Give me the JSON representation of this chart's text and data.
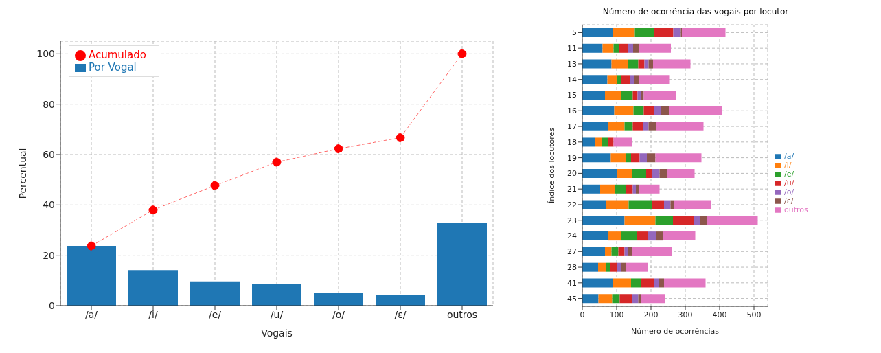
{
  "chart_data": [
    {
      "type": "bar",
      "xlabel": "Vogais",
      "ylabel": "Percentual",
      "categories": [
        "/a/",
        "/i/",
        "/e/",
        "/u/",
        "/o/",
        "/ɛ/",
        "outros"
      ],
      "series": [
        {
          "name": "Acumulado",
          "type": "line",
          "color": "#ff0000",
          "values": [
            23.7,
            38,
            47.7,
            57,
            62.3,
            66.7,
            100
          ]
        },
        {
          "name": "Por Vogal",
          "type": "bar",
          "color": "#1f77b4",
          "values": [
            23.7,
            14.1,
            9.6,
            8.7,
            5.2,
            4.3,
            33
          ]
        }
      ],
      "ylim": [
        0,
        105
      ],
      "yticks": [
        0,
        20,
        40,
        60,
        80,
        100
      ],
      "grid": true,
      "legend": "top left",
      "marker": "circle",
      "line_style": "dashed"
    },
    {
      "type": "bar",
      "orientation": "horizontal",
      "stacked": true,
      "title": "Número de ocorrência das vogais por locutor",
      "xlabel": "Número de ocorrências",
      "ylabel": "Índice dos locutores",
      "categories": [
        "5",
        "11",
        "13",
        "14",
        "15",
        "16",
        "17",
        "18",
        "19",
        "20",
        "21",
        "22",
        "23",
        "24",
        "27",
        "28",
        "41",
        "45"
      ],
      "series": [
        {
          "name": "/a/",
          "color": "#1f77b4",
          "values": [
            90,
            59,
            85,
            73,
            66,
            93,
            75,
            36,
            83,
            102,
            52,
            70,
            123,
            75,
            66,
            46,
            90,
            47
          ]
        },
        {
          "name": "/i/",
          "color": "#ff7f0e",
          "values": [
            63,
            32,
            48,
            27,
            48,
            56,
            48,
            20,
            43,
            44,
            43,
            65,
            90,
            37,
            19,
            24,
            52,
            40
          ]
        },
        {
          "name": "/e/",
          "color": "#2ca02c",
          "values": [
            55,
            16,
            30,
            12,
            33,
            30,
            24,
            19,
            16,
            40,
            31,
            69,
            51,
            48,
            20,
            10,
            30,
            22
          ]
        },
        {
          "name": "/u/",
          "color": "#d62728",
          "values": [
            57,
            27,
            18,
            28,
            14,
            30,
            29,
            16,
            25,
            18,
            21,
            34,
            62,
            32,
            18,
            20,
            37,
            36
          ]
        },
        {
          "name": "/o/",
          "color": "#9467bd",
          "values": [
            22,
            14,
            12,
            11,
            11,
            19,
            17,
            0,
            21,
            21,
            9,
            19,
            17,
            22,
            10,
            12,
            15,
            18
          ]
        },
        {
          "name": "/ɛ/",
          "color": "#8c564b",
          "values": [
            3,
            18,
            13,
            14,
            7,
            24,
            23,
            0,
            25,
            21,
            9,
            10,
            19,
            22,
            13,
            16,
            14,
            9
          ]
        },
        {
          "name": "outros",
          "color": "#e377c2",
          "values": [
            127,
            92,
            109,
            88,
            95,
            155,
            137,
            53,
            134,
            81,
            60,
            107,
            149,
            93,
            114,
            64,
            121,
            68
          ]
        }
      ],
      "xlim": [
        0,
        540
      ],
      "xticks": [
        0,
        100,
        200,
        300,
        400,
        500
      ],
      "grid": true,
      "legend": "right"
    }
  ]
}
